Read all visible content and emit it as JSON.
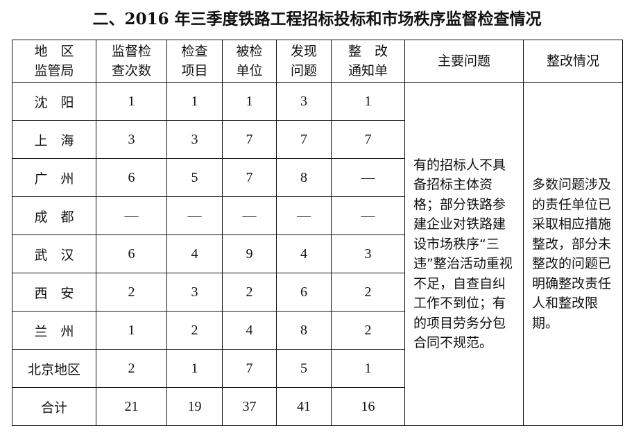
{
  "title": "二、2016 年三季度铁路工程招标投标和市场秩序监督检查情况",
  "headers": [
    "地　区\n监管局",
    "监督检\n查次数",
    "检查\n项目",
    "被检\n单位",
    "发现\n问题",
    "整　改\n通知单",
    "主要问题",
    "整改情况"
  ],
  "rows": [
    {
      "region": "沈　阳",
      "values": [
        "1",
        "1",
        "1",
        "3",
        "1"
      ]
    },
    {
      "region": "上　海",
      "values": [
        "3",
        "3",
        "7",
        "7",
        "7"
      ]
    },
    {
      "region": "广　州",
      "values": [
        "6",
        "5",
        "7",
        "8",
        "—"
      ]
    },
    {
      "region": "成　都",
      "values": [
        "—",
        "—",
        "—",
        "—",
        "—"
      ]
    },
    {
      "region": "武　汉",
      "values": [
        "6",
        "4",
        "9",
        "4",
        "3"
      ]
    },
    {
      "region": "西　安",
      "values": [
        "2",
        "3",
        "2",
        "6",
        "2"
      ]
    },
    {
      "region": "兰　州",
      "values": [
        "1",
        "2",
        "4",
        "8",
        "2"
      ]
    },
    {
      "region": "北京地区",
      "values": [
        "2",
        "1",
        "7",
        "5",
        "1"
      ]
    },
    {
      "region": "合计",
      "values": [
        "21",
        "19",
        "37",
        "41",
        "16"
      ]
    }
  ],
  "main_problems": "有的招标人不具备招标主体资格；部分铁路参建企业对铁路建设市场秩序“三违”整治活动重视不足，自查自纠工作不到位；有的项目劳务分包合同不规范。",
  "rectification": "多数问题涉及的责任单位已采取相应措施整改，部分未整改的问题已明确整改责任人和整改限期。"
}
